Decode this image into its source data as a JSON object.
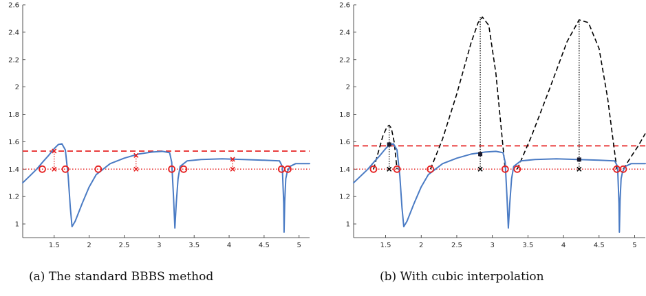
{
  "chart_data": [
    {
      "type": "line",
      "panel": "a",
      "caption": "(a) The standard BBBS method",
      "xlim": [
        1.05,
        5.15
      ],
      "ylim": [
        0.9,
        2.6
      ],
      "xticks": [
        "1.5",
        "2",
        "2.5",
        "3",
        "3.5",
        "4",
        "4.5",
        "5"
      ],
      "yticks": [
        "1",
        "1.2",
        "1.4",
        "1.6",
        "1.8",
        "2",
        "2.2",
        "2.4",
        "2.6"
      ],
      "grid": false,
      "curve": {
        "color": "#4a7bc4",
        "x": [
          1.05,
          1.15,
          1.25,
          1.35,
          1.42,
          1.5,
          1.56,
          1.61,
          1.66,
          1.7,
          1.73,
          1.755,
          1.8,
          1.9,
          2.0,
          2.1,
          2.3,
          2.5,
          2.7,
          2.9,
          3.05,
          3.15,
          3.18,
          3.205,
          3.225,
          3.245,
          3.27,
          3.3,
          3.4,
          3.6,
          3.9,
          4.2,
          4.5,
          4.72,
          4.76,
          4.78,
          4.785,
          4.795,
          4.81,
          4.83,
          4.87,
          4.95,
          5.15
        ],
        "y": [
          1.3,
          1.35,
          1.4,
          1.46,
          1.5,
          1.55,
          1.58,
          1.585,
          1.54,
          1.35,
          1.12,
          0.98,
          1.02,
          1.15,
          1.27,
          1.36,
          1.44,
          1.48,
          1.51,
          1.525,
          1.53,
          1.52,
          1.45,
          1.2,
          0.97,
          1.15,
          1.33,
          1.42,
          1.46,
          1.47,
          1.475,
          1.47,
          1.465,
          1.46,
          1.42,
          1.15,
          0.94,
          1.17,
          1.33,
          1.38,
          1.42,
          1.44,
          1.44
        ]
      },
      "threshold_line": {
        "y": 1.4,
        "color": "#e62020",
        "style": "dotted"
      },
      "upper_bound_line": {
        "y": 1.532,
        "color": "#e62020",
        "style": "dashed"
      },
      "crossings": [
        1.33,
        1.66,
        2.13,
        3.18,
        3.35,
        4.75,
        4.84
      ],
      "midpoint_markers": [
        {
          "x": 1.5,
          "y": 1.532
        },
        {
          "x": 2.67,
          "y": 1.5
        },
        {
          "x": 4.05,
          "y": 1.472
        }
      ]
    },
    {
      "type": "line",
      "panel": "b",
      "caption": "(b) With cubic interpolation",
      "xlim": [
        1.05,
        5.15
      ],
      "ylim": [
        0.9,
        2.6
      ],
      "xticks": [
        "1.5",
        "2",
        "2.5",
        "3",
        "3.5",
        "4",
        "4.5",
        "5"
      ],
      "yticks": [
        "1",
        "1.2",
        "1.4",
        "1.6",
        "1.8",
        "2",
        "2.2",
        "2.4",
        "2.6"
      ],
      "grid": false,
      "curve": {
        "color": "#4a7bc4",
        "x": [
          1.05,
          1.15,
          1.25,
          1.35,
          1.42,
          1.5,
          1.56,
          1.61,
          1.66,
          1.7,
          1.73,
          1.755,
          1.8,
          1.9,
          2.0,
          2.1,
          2.3,
          2.5,
          2.7,
          2.9,
          3.05,
          3.15,
          3.18,
          3.205,
          3.225,
          3.245,
          3.27,
          3.3,
          3.4,
          3.6,
          3.9,
          4.2,
          4.5,
          4.72,
          4.76,
          4.78,
          4.785,
          4.795,
          4.81,
          4.83,
          4.87,
          4.95,
          5.15
        ],
        "y": [
          1.3,
          1.35,
          1.4,
          1.46,
          1.5,
          1.55,
          1.58,
          1.585,
          1.54,
          1.35,
          1.12,
          0.98,
          1.02,
          1.15,
          1.27,
          1.36,
          1.44,
          1.48,
          1.51,
          1.525,
          1.53,
          1.52,
          1.45,
          1.2,
          0.97,
          1.15,
          1.33,
          1.42,
          1.46,
          1.47,
          1.475,
          1.47,
          1.465,
          1.46,
          1.42,
          1.15,
          0.94,
          1.17,
          1.33,
          1.38,
          1.42,
          1.44,
          1.44
        ]
      },
      "threshold_line": {
        "y": 1.4,
        "color": "#e62020",
        "style": "dotted"
      },
      "upper_bound_line": {
        "y": 1.57,
        "color": "#e62020",
        "style": "dashed"
      },
      "crossings": [
        1.33,
        1.66,
        2.13,
        3.18,
        3.35,
        4.75,
        4.84
      ],
      "cubic_interpolants": {
        "color": "#000000",
        "style": "dashed",
        "arcs": [
          {
            "x": [
              1.33,
              1.4,
              1.46,
              1.52,
              1.55,
              1.58,
              1.62,
              1.66
            ],
            "y": [
              1.4,
              1.53,
              1.64,
              1.71,
              1.72,
              1.7,
              1.6,
              1.4
            ]
          },
          {
            "x": [
              2.13,
              2.3,
              2.5,
              2.7,
              2.8,
              2.86,
              2.95,
              3.05,
              3.18
            ],
            "y": [
              1.4,
              1.62,
              1.95,
              2.32,
              2.47,
              2.51,
              2.45,
              2.1,
              1.4
            ]
          },
          {
            "x": [
              3.35,
              3.55,
              3.8,
              4.05,
              4.22,
              4.35,
              4.5,
              4.62,
              4.75
            ],
            "y": [
              1.4,
              1.64,
              1.98,
              2.33,
              2.49,
              2.47,
              2.28,
              1.92,
              1.4
            ]
          },
          {
            "x": [
              4.84,
              4.95,
              5.05,
              5.15
            ],
            "y": [
              1.4,
              1.49,
              1.57,
              1.66
            ]
          }
        ]
      },
      "maximizers": [
        {
          "x": 1.55,
          "f": 1.58,
          "peak": 1.72
        },
        {
          "x": 2.83,
          "f": 1.51,
          "peak": 2.51
        },
        {
          "x": 4.22,
          "f": 1.47,
          "peak": 2.49
        }
      ]
    }
  ]
}
